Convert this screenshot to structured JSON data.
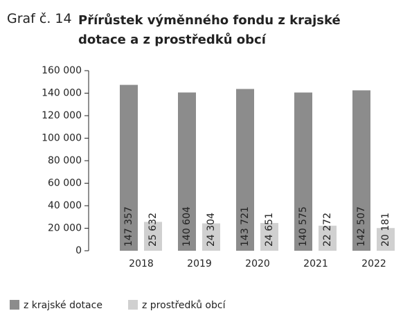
{
  "chart_data": {
    "type": "bar",
    "title_prefix": "Graf č. 14",
    "title": "Přírůstek výměnného fondu z krajské dotace a z prostředků obcí",
    "categories": [
      "2018",
      "2019",
      "2020",
      "2021",
      "2022"
    ],
    "series": [
      {
        "name": "z krajské dotace",
        "color": "#8c8c8c",
        "values": [
          147357,
          140604,
          143721,
          140575,
          142507
        ],
        "value_labels": [
          "147 357",
          "140 604",
          "143 721",
          "140 575",
          "142 507"
        ]
      },
      {
        "name": "z prostředků obcí",
        "color": "#d0d0d0",
        "values": [
          25632,
          24304,
          24651,
          22272,
          20181
        ],
        "value_labels": [
          "25 632",
          "24 304",
          "24 651",
          "22 272",
          "20 181"
        ]
      }
    ],
    "ylim": [
      0,
      160000
    ],
    "yticks": [
      0,
      {
        "value": 20000,
        "label": "20 000"
      },
      {
        "value": 40000,
        "label": "40 000"
      },
      {
        "value": 60000,
        "label": "60 000"
      },
      {
        "value": 80000,
        "label": "80 000"
      },
      {
        "value": 100000,
        "label": "100 000"
      },
      {
        "value": 120000,
        "label": "120 000"
      },
      {
        "value": 140000,
        "label": "140 000"
      },
      {
        "value": 160000,
        "label": "160 000"
      }
    ]
  }
}
